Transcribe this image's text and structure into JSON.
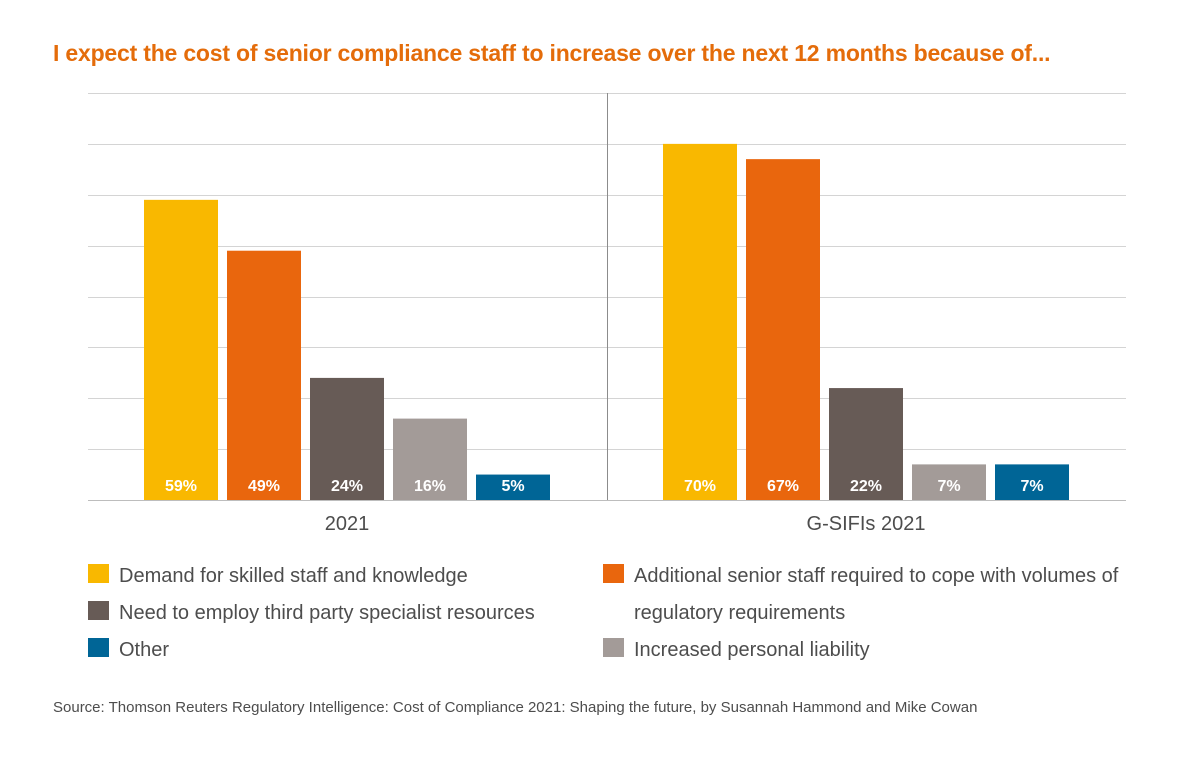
{
  "title": "I expect the cost of senior compliance staff to increase over the next 12 months because of...",
  "source": "Source: Thomson Reuters Regulatory Intelligence: Cost of Compliance 2021: Shaping the future, by Susannah Hammond and Mike Cowan",
  "chart_data": {
    "type": "bar",
    "title": "I expect the cost of senior compliance staff to increase over the next 12 months because of...",
    "groups": [
      "2021",
      "G-SIFIs 2021"
    ],
    "series": [
      {
        "name": "Demand for skilled staff and knowledge",
        "color": "#f9b800",
        "values": [
          59,
          70
        ],
        "labels": [
          "59%",
          "70%"
        ]
      },
      {
        "name": "Additional senior staff required to cope with volumes of regulatory requirements",
        "color": "#e9660d",
        "values": [
          49,
          67
        ],
        "labels": [
          "49%",
          "67%"
        ]
      },
      {
        "name": "Need to employ third party specialist resources",
        "color": "#675b56",
        "values": [
          24,
          22
        ],
        "labels": [
          "24%",
          "22%"
        ]
      },
      {
        "name": "Increased personal liability",
        "color": "#a39b98",
        "values": [
          16,
          7
        ],
        "labels": [
          "16%",
          "7%"
        ]
      },
      {
        "name": "Other",
        "color": "#006596",
        "values": [
          5,
          7
        ],
        "labels": [
          "5%",
          "7%"
        ]
      }
    ],
    "ylim": [
      0,
      80
    ],
    "grid": true,
    "legend_position": "bottom",
    "xlabel": "",
    "ylabel": ""
  },
  "legend": [
    {
      "label": "Demand for skilled staff and knowledge",
      "color": "#f9b800"
    },
    {
      "label": "Need to employ third party specialist resources",
      "color": "#675b56"
    },
    {
      "label": "Other",
      "color": "#006596"
    },
    {
      "label": "Additional senior staff required to cope with volumes of regulatory requirements",
      "color": "#e9660d"
    },
    {
      "label": "Increased personal liability",
      "color": "#a39b98"
    }
  ]
}
